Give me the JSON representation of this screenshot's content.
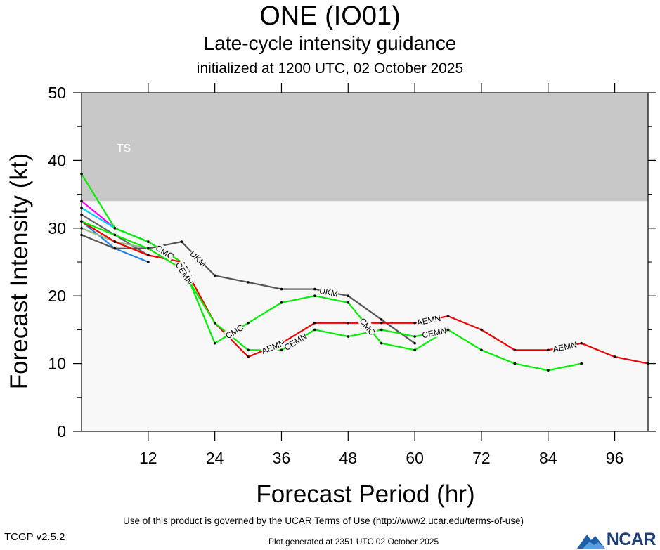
{
  "header": {
    "title": "ONE (IO01)",
    "subtitle": "Late-cycle intensity guidance",
    "initialized": "initialized at 1200 UTC, 02 October 2025"
  },
  "footer": {
    "terms": "Use of this product is governed by the UCAR Terms of Use (http://www2.ucar.edu/terms-of-use)",
    "version": "TCGP v2.5.2",
    "generated": "Plot generated at 2351 UTC   02 October 2025",
    "logo_text": "NCAR"
  },
  "chart_data": {
    "type": "line",
    "title": "ONE (IO01)",
    "subtitle": "Late-cycle intensity guidance",
    "xlabel": "Forecast Period (hr)",
    "ylabel": "Forecast Intensity (kt)",
    "xlim": [
      0,
      102
    ],
    "ylim": [
      0,
      50
    ],
    "xticks": [
      12,
      24,
      36,
      48,
      60,
      72,
      84,
      96
    ],
    "yticks": [
      0,
      10,
      20,
      30,
      40,
      50
    ],
    "bands": [
      {
        "label": "TS",
        "from": 34,
        "to": 50,
        "color": "#c8c8c8"
      }
    ],
    "plot_background": "#f8f8f8",
    "series": [
      {
        "name": "UKM",
        "color": "#555555",
        "x": [
          0,
          6,
          12,
          18,
          24,
          30,
          36,
          42,
          48,
          54,
          60
        ],
        "y": [
          29,
          27,
          27,
          28,
          23,
          22,
          21,
          21,
          20,
          16.5,
          13
        ],
        "labels": [
          {
            "at": 21,
            "text": "UKM"
          },
          {
            "at": 44.5,
            "text": "UKM"
          }
        ]
      },
      {
        "name": "CMC",
        "color": "#00ee00",
        "x": [
          0,
          6,
          12,
          18,
          24,
          30,
          36,
          42,
          48,
          54,
          60,
          66
        ],
        "y": [
          38,
          30,
          28,
          25,
          13,
          16,
          19,
          20,
          19,
          13,
          12,
          15
        ],
        "labels": [
          {
            "at": 15,
            "text": "CMC"
          },
          {
            "at": 27.5,
            "text": "CMC"
          },
          {
            "at": 51.5,
            "text": "CMC"
          }
        ]
      },
      {
        "name": "AEMN",
        "color": "#ee0000",
        "x": [
          0,
          6,
          12,
          18,
          24,
          30,
          36,
          42,
          48,
          54,
          60,
          66,
          72,
          78,
          84,
          90,
          96,
          102
        ],
        "y": [
          31,
          28,
          26,
          25,
          16,
          11,
          13,
          16,
          16,
          16,
          16,
          17,
          15,
          12,
          12,
          13,
          11,
          10
        ],
        "labels": [
          {
            "at": 19,
            "text": "AEMN"
          },
          {
            "at": 34.5,
            "text": "AEMN"
          },
          {
            "at": 62.5,
            "text": "AEMN"
          },
          {
            "at": 87,
            "text": "AEMN"
          }
        ]
      },
      {
        "name": "CEMN",
        "color": "#00ee00",
        "x": [
          0,
          6,
          12,
          18,
          24,
          30,
          36,
          42,
          48,
          54,
          60,
          66,
          72,
          78,
          84,
          90
        ],
        "y": [
          31,
          29,
          27,
          24,
          16,
          12,
          12,
          15,
          14,
          15,
          14,
          15,
          12,
          10,
          9,
          10
        ],
        "labels": [
          {
            "at": 18.5,
            "text": "CEMN"
          },
          {
            "at": 38.5,
            "text": "CEMN"
          },
          {
            "at": 63.5,
            "text": "CEMN"
          }
        ]
      },
      {
        "color": "#ff00ff",
        "x": [
          0,
          6
        ],
        "y": [
          34,
          30
        ],
        "labels": []
      },
      {
        "color": "#00ccff",
        "x": [
          0,
          6,
          12
        ],
        "y": [
          33,
          30,
          28
        ],
        "labels": []
      },
      {
        "color": "#1e7fe0",
        "x": [
          0,
          6,
          12
        ],
        "y": [
          31,
          27,
          25
        ],
        "labels": []
      },
      {
        "color": "#ff9900",
        "x": [
          0,
          6,
          12
        ],
        "y": [
          31,
          28,
          26
        ],
        "labels": []
      },
      {
        "color": "#666666",
        "x": [
          0,
          6,
          12
        ],
        "y": [
          32,
          29,
          26
        ],
        "labels": []
      },
      {
        "color": "#8fbc8f",
        "x": [
          0,
          6,
          12
        ],
        "y": [
          30,
          28,
          27
        ],
        "labels": []
      }
    ]
  }
}
